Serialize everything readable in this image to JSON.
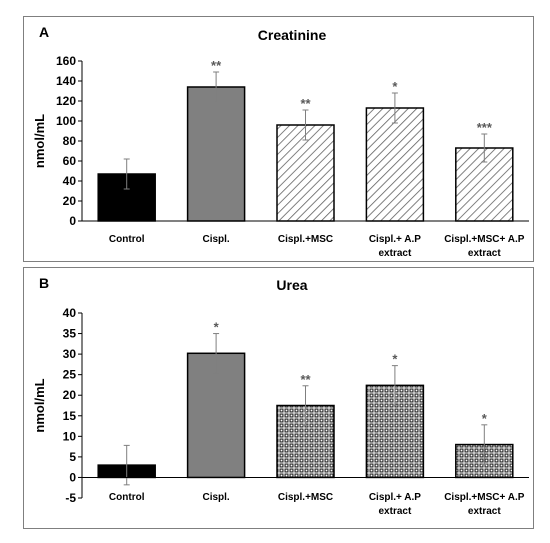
{
  "chart_data": [
    {
      "type": "bar",
      "panel_label": "A",
      "title": "Creatinine",
      "ylabel": "nmol/mL",
      "xlabel": "",
      "ylim": [
        0,
        160
      ],
      "ytick_step": 20,
      "categories": [
        "Control",
        "Cispl.",
        "Cispl.+MSC",
        "Cispl.+ A.P extract",
        "Cispl.+MSC+ A.P extract"
      ],
      "category_lines": [
        [
          "Control"
        ],
        [
          "Cispl."
        ],
        [
          "Cispl.+MSC"
        ],
        [
          "Cispl.+ A.P",
          "extract"
        ],
        [
          "Cispl.+MSC+ A.P",
          "extract"
        ]
      ],
      "values": [
        47,
        134,
        96,
        113,
        73
      ],
      "errors": [
        15,
        15,
        15,
        15,
        14
      ],
      "significance": [
        "",
        "**",
        "**",
        "*",
        "***"
      ],
      "fills": [
        "solid-black",
        "solid-gray",
        "diagonal-hatch",
        "diagonal-hatch",
        "diagonal-hatch"
      ],
      "grid": false,
      "legend": "none"
    },
    {
      "type": "bar",
      "panel_label": "B",
      "title": "Urea",
      "ylabel": "nmol/mL",
      "xlabel": "",
      "ylim": [
        -5,
        40
      ],
      "ytick_step": 5,
      "categories": [
        "Control",
        "Cispl.",
        "Cispl.+MSC",
        "Cispl.+ A.P extract",
        "Cispl.+MSC+ A.P extract"
      ],
      "category_lines": [
        [
          "Control"
        ],
        [
          "Cispl."
        ],
        [
          "Cispl.+MSC"
        ],
        [
          "Cispl.+ A.P",
          "extract"
        ],
        [
          "Cispl.+MSC+ A.P",
          "extract"
        ]
      ],
      "values": [
        3,
        30.2,
        17.5,
        22.4,
        8
      ],
      "errors": [
        4.8,
        4.8,
        4.8,
        4.8,
        4.8
      ],
      "significance": [
        "",
        "*",
        "**",
        "*",
        "*"
      ],
      "fills": [
        "solid-black",
        "solid-gray",
        "crosshatch",
        "crosshatch",
        "crosshatch"
      ],
      "grid": false,
      "legend": "none"
    }
  ],
  "colors": {
    "bar_black": "#000000",
    "bar_gray": "#808080",
    "hatch_line": "#606060",
    "crosshatch_fill": "#222222",
    "axis": "#000000",
    "error_bar": "#7f7f7f",
    "significance": "#595959",
    "panel_border": "#7f7f7f"
  }
}
